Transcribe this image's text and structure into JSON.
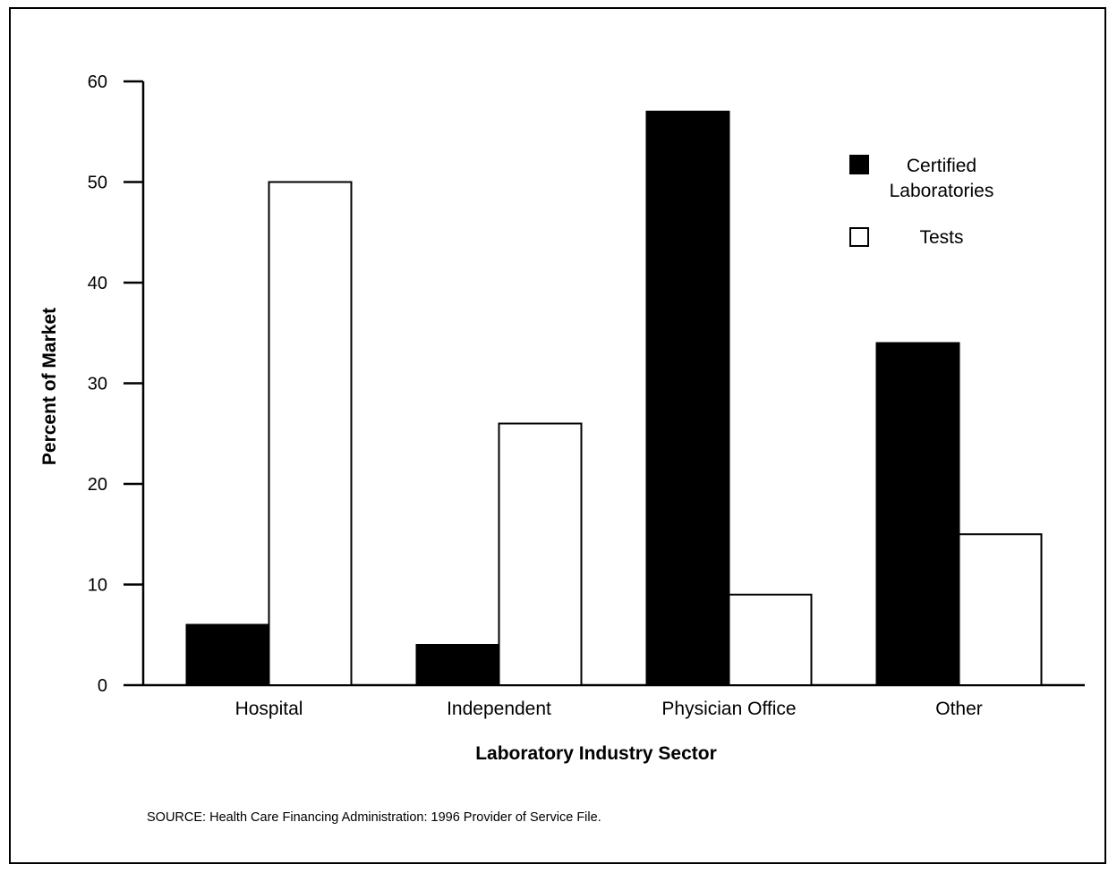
{
  "chart_data": {
    "type": "bar",
    "title": "",
    "xlabel": "Laboratory Industry Sector",
    "ylabel": "Percent of Market",
    "ylim": [
      0,
      60
    ],
    "yticks": [
      "0",
      "10",
      "20",
      "30",
      "40",
      "50",
      "60"
    ],
    "categories": [
      "Hospital",
      "Independent",
      "Physician Office",
      "Other"
    ],
    "series": [
      {
        "name": "Certified Laboratories",
        "name_lines": [
          "Certified",
          "Laboratories"
        ],
        "color": "#000000",
        "values": [
          6,
          4,
          57,
          34
        ]
      },
      {
        "name": "Tests",
        "name_lines": [
          "Tests"
        ],
        "color": "#ffffff",
        "values": [
          50,
          26,
          9,
          15
        ]
      }
    ],
    "grid": false,
    "legend_position": "top-right"
  },
  "source": "SOURCE: Health Care Financing Administration: 1996 Provider of Service File."
}
